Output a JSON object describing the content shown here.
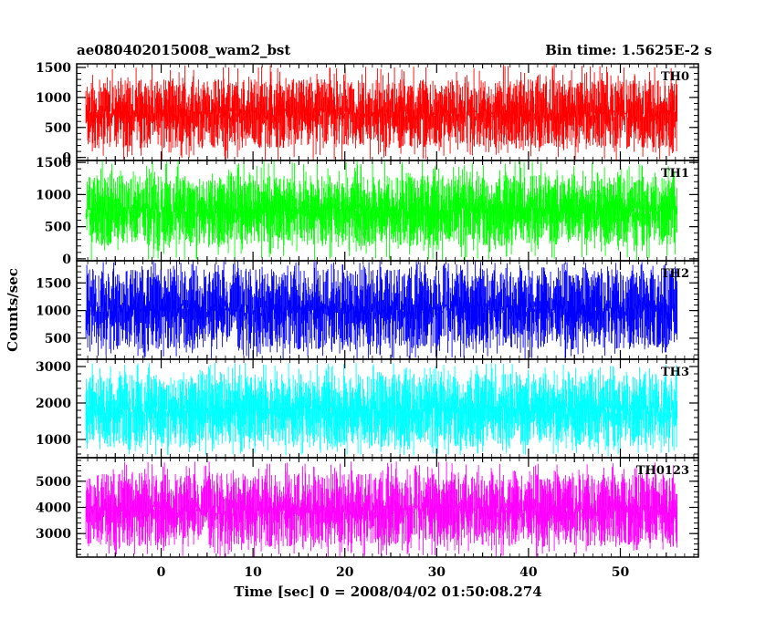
{
  "chart_data": {
    "type": "line",
    "title_left": "ae080402015008_wam2_bst",
    "title_right": "Bin time: 1.5625E-2 s",
    "xlabel": "Time [sec] 0 = 2008/04/02 01:50:08.274",
    "ylabel": "Counts/sec",
    "xlim": [
      -9.2,
      58.5
    ],
    "data_xrange": [
      -8.2,
      56.2
    ],
    "xticks": [
      0,
      10,
      20,
      30,
      40,
      50
    ],
    "grid": false,
    "panels": [
      {
        "name": "TH0",
        "color": "#ff0000",
        "ylim": [
          -50,
          1560
        ],
        "yticks": [
          0,
          500,
          1000,
          1500
        ],
        "typical_range": [
          150,
          1300
        ],
        "spike_range": [
          -50,
          1560
        ]
      },
      {
        "name": "TH1",
        "color": "#00ff00",
        "ylim": [
          -30,
          1530
        ],
        "yticks": [
          0,
          500,
          1000,
          1500
        ],
        "typical_range": [
          200,
          1300
        ],
        "spike_range": [
          -30,
          1530
        ]
      },
      {
        "name": "TH2",
        "color": "#0000ff",
        "ylim": [
          120,
          1900
        ],
        "yticks": [
          500,
          1000,
          1500
        ],
        "typical_range": [
          300,
          1750
        ],
        "spike_range": [
          120,
          1900
        ]
      },
      {
        "name": "TH3",
        "color": "#00ffff",
        "ylim": [
          500,
          3200
        ],
        "yticks": [
          1000,
          2000,
          3000
        ],
        "typical_range": [
          800,
          2800
        ],
        "spike_range": [
          550,
          3100
        ]
      },
      {
        "name": "TH0123",
        "color": "#ff00ff",
        "ylim": [
          2100,
          5900
        ],
        "yticks": [
          3000,
          4000,
          5000
        ],
        "typical_range": [
          2500,
          5300
        ],
        "spike_range": [
          2100,
          5750
        ]
      }
    ]
  }
}
